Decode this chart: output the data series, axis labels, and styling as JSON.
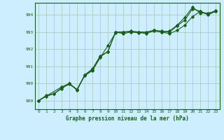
{
  "title": "Graphe pression niveau de la mer (hPa)",
  "background_color": "#cceeff",
  "grid_color": "#aaccbb",
  "line_color": "#1a5c1a",
  "xlim": [
    -0.5,
    23.5
  ],
  "ylim": [
    988.5,
    994.7
  ],
  "yticks": [
    989,
    990,
    991,
    992,
    993,
    994
  ],
  "xticks": [
    0,
    1,
    2,
    3,
    4,
    5,
    6,
    7,
    8,
    9,
    10,
    11,
    12,
    13,
    14,
    15,
    16,
    17,
    18,
    19,
    20,
    21,
    22,
    23
  ],
  "series1": {
    "x": [
      0,
      1,
      2,
      3,
      4,
      5,
      6,
      7,
      8,
      9,
      10,
      11,
      12,
      13,
      14,
      15,
      16,
      17,
      18,
      19,
      20,
      21,
      22,
      23
    ],
    "y": [
      989.0,
      989.3,
      989.4,
      989.7,
      990.0,
      989.6,
      990.5,
      990.8,
      991.55,
      991.85,
      993.0,
      992.9,
      993.0,
      993.0,
      992.9,
      993.1,
      993.0,
      992.9,
      993.1,
      993.4,
      993.9,
      994.2,
      994.0,
      994.2
    ]
  },
  "series2": {
    "x": [
      0,
      1,
      2,
      3,
      4,
      5,
      6,
      7,
      8,
      9,
      10,
      11,
      12,
      13,
      14,
      15,
      16,
      17,
      18,
      19,
      20,
      21,
      22,
      23
    ],
    "y": [
      989.0,
      989.25,
      989.4,
      989.75,
      989.95,
      989.65,
      990.45,
      990.75,
      991.5,
      992.2,
      992.95,
      993.0,
      993.0,
      992.95,
      992.95,
      993.05,
      993.0,
      993.05,
      993.4,
      993.85,
      994.45,
      994.1,
      994.1,
      994.2
    ]
  },
  "series3": {
    "x": [
      0,
      3,
      4,
      5,
      6,
      7,
      8,
      9,
      10,
      11,
      12,
      13,
      14,
      15,
      16,
      17,
      18,
      19,
      20,
      21,
      22,
      23
    ],
    "y": [
      989.0,
      989.8,
      990.0,
      989.65,
      990.5,
      990.85,
      991.6,
      991.85,
      993.0,
      993.0,
      993.05,
      993.0,
      993.0,
      993.1,
      993.05,
      993.0,
      993.35,
      993.7,
      994.35,
      994.2,
      994.05,
      994.25
    ]
  }
}
